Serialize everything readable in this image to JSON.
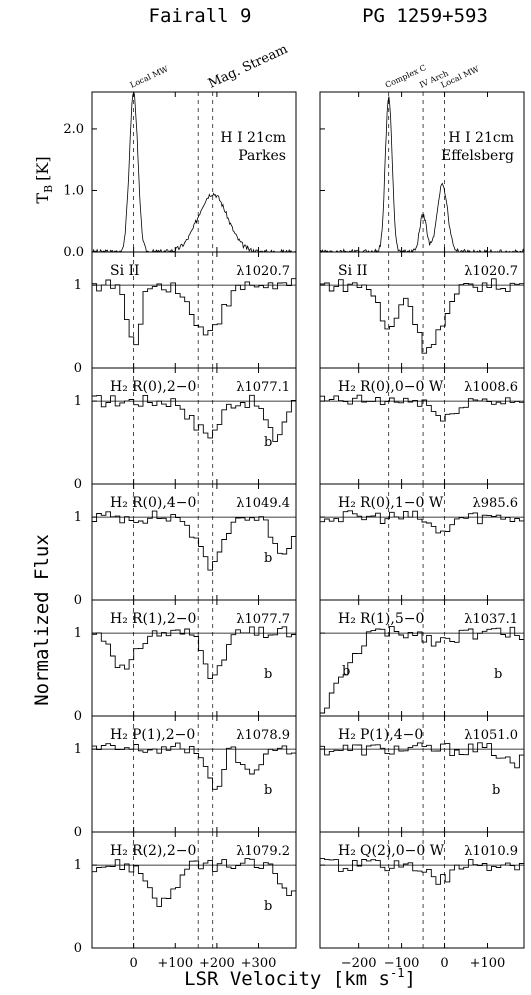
{
  "figure": {
    "left_title": "Fairall 9",
    "right_title": "PG 1259+593",
    "ylabel_top": "T",
    "ylabel_top_sub": "B",
    "ylabel_top_unit": "[K]",
    "ylabel_main": "Normalized Flux",
    "xlabel": "LSR Velocity [km s",
    "xlabel_exp": "-1",
    "xlabel_close": "]"
  },
  "chart_data": [
    {
      "type": "line",
      "column": "left",
      "x_ticks": [
        "0",
        "+100",
        "+200",
        "+300"
      ],
      "x_tick_values": [
        0,
        100,
        200,
        300
      ],
      "xlim": [
        -100,
        390
      ],
      "markers": [
        {
          "label": "Local MW",
          "v": 0
        },
        {
          "label": "Mag. Stream",
          "v": 190
        }
      ],
      "dashed_lines": [
        0,
        155,
        190
      ],
      "panels": [
        {
          "kind": "hi",
          "label": "H I 21cm",
          "label2": "Parkes",
          "ylim": [
            0,
            2.6
          ],
          "yticks": [
            "0.0",
            "1.0",
            "2.0"
          ],
          "ytick_values": [
            0,
            1,
            2
          ],
          "profile": [
            {
              "v": 0,
              "h": 2.6,
              "w": 10
            },
            {
              "v": 190,
              "h": 0.95,
              "w": 35
            }
          ]
        },
        {
          "kind": "abs",
          "species": "Si II",
          "label": "λ1020.7",
          "ylim": [
            0,
            1.4
          ],
          "yticks": [
            "0",
            "1"
          ],
          "absorb": [
            {
              "v": 0,
              "d": 0.75,
              "w": 15
            },
            {
              "v": 150,
              "d": 0.3,
              "w": 20
            },
            {
              "v": 190,
              "d": 0.45,
              "w": 30
            }
          ]
        },
        {
          "kind": "abs",
          "species": "H₂",
          "line": "R(0),2−0",
          "label": "λ1077.1",
          "ylim": [
            0,
            1.4
          ],
          "yticks": [
            "0",
            "1"
          ],
          "b_label": "b",
          "absorb": [
            {
              "v": 150,
              "d": 0.25,
              "w": 20
            },
            {
              "v": 190,
              "d": 0.35,
              "w": 20
            },
            {
              "v": 340,
              "d": 0.45,
              "w": 20
            }
          ]
        },
        {
          "kind": "abs",
          "species": "H₂",
          "line": "R(0),4−0",
          "label": "λ1049.4",
          "ylim": [
            0,
            1.4
          ],
          "yticks": [
            "0",
            "1"
          ],
          "b_label": "b",
          "absorb": [
            {
              "v": 160,
              "d": 0.3,
              "w": 20
            },
            {
              "v": 195,
              "d": 0.5,
              "w": 20
            },
            {
              "v": 360,
              "d": 0.4,
              "w": 25
            }
          ]
        },
        {
          "kind": "abs",
          "species": "H₂",
          "line": "R(1),2−0",
          "label": "λ1077.7",
          "ylim": [
            0,
            1.4
          ],
          "yticks": [
            "0",
            "1"
          ],
          "b_label": "b",
          "absorb": [
            {
              "v": -20,
              "d": 0.45,
              "w": 25
            },
            {
              "v": 195,
              "d": 0.55,
              "w": 20
            }
          ]
        },
        {
          "kind": "abs",
          "species": "H₂",
          "line": "P(1),2−0",
          "label": "λ1078.9",
          "ylim": [
            0,
            1.4
          ],
          "yticks": [
            "0",
            "1"
          ],
          "b_label": "b",
          "absorb": [
            {
              "v": 195,
              "d": 0.55,
              "w": 15
            },
            {
              "v": 280,
              "d": 0.3,
              "w": 20
            }
          ]
        },
        {
          "kind": "abs",
          "species": "H₂",
          "line": "R(2),2−0",
          "label": "λ1079.2",
          "ylim": [
            0,
            1.4
          ],
          "yticks": [
            "0",
            "1"
          ],
          "b_label": "b",
          "absorb": [
            {
              "v": 70,
              "d": 0.45,
              "w": 30
            },
            {
              "v": 370,
              "d": 0.3,
              "w": 20
            }
          ]
        }
      ]
    },
    {
      "type": "line",
      "column": "right",
      "x_ticks": [
        "−200",
        "−100",
        "0",
        "+100"
      ],
      "x_tick_values": [
        -200,
        -100,
        0,
        100
      ],
      "xlim": [
        -290,
        185
      ],
      "markers": [
        {
          "label": "Complex C",
          "v": -130
        },
        {
          "label": "IV Arch",
          "v": -50
        },
        {
          "label": "Local MW",
          "v": 0
        }
      ],
      "dashed_lines": [
        -130,
        -50,
        0
      ],
      "panels": [
        {
          "kind": "hi",
          "label": "H I 21cm",
          "label2": "Effelsberg",
          "ylim": [
            0,
            2.6
          ],
          "yticks": [],
          "ytick_values": [
            0,
            1,
            2
          ],
          "profile": [
            {
              "v": -130,
              "h": 2.5,
              "w": 8
            },
            {
              "v": -50,
              "h": 0.6,
              "w": 8
            },
            {
              "v": -5,
              "h": 1.1,
              "w": 12
            }
          ]
        },
        {
          "kind": "abs",
          "species": "Si II",
          "label": "λ1020.7",
          "ylim": [
            0,
            1.4
          ],
          "yticks": [],
          "absorb": [
            {
              "v": -130,
              "d": 0.55,
              "w": 20
            },
            {
              "v": -50,
              "d": 0.6,
              "w": 20
            },
            {
              "v": -10,
              "d": 0.45,
              "w": 25
            }
          ]
        },
        {
          "kind": "abs",
          "species": "H₂",
          "line": "R(0),0−0 W",
          "label": "λ1008.6",
          "ylim": [
            0,
            1.4
          ],
          "yticks": [],
          "absorb": [
            {
              "v": 0,
              "d": 0.25,
              "w": 20
            }
          ]
        },
        {
          "kind": "abs",
          "species": "H₂",
          "line": "R(0),1−0 W",
          "label": "λ985.6",
          "ylim": [
            0,
            1.4
          ],
          "yticks": [],
          "absorb": [
            {
              "v": -10,
              "d": 0.2,
              "w": 20
            }
          ]
        },
        {
          "kind": "abs",
          "species": "H₂",
          "line": "R(1),5−0",
          "label": "λ1037.1",
          "ylim": [
            0,
            1.4
          ],
          "yticks": [],
          "b_label": "b",
          "b_label2": "b",
          "absorb": [
            {
              "v": -10,
              "d": 0.1,
              "w": 25
            }
          ],
          "left_wing": true
        },
        {
          "kind": "abs",
          "species": "H₂",
          "line": "P(1),4−0",
          "label": "λ1051.0",
          "ylim": [
            0,
            1.4
          ],
          "yticks": [],
          "b_label": "b",
          "absorb": [
            {
              "v": 160,
              "d": 0.2,
              "w": 20
            }
          ]
        },
        {
          "kind": "abs",
          "species": "H₂",
          "line": "Q(2),0−0 W",
          "label": "λ1010.9",
          "ylim": [
            0,
            1.4
          ],
          "yticks": [],
          "absorb": [
            {
              "v": -10,
              "d": 0.2,
              "w": 25
            }
          ]
        }
      ]
    }
  ]
}
